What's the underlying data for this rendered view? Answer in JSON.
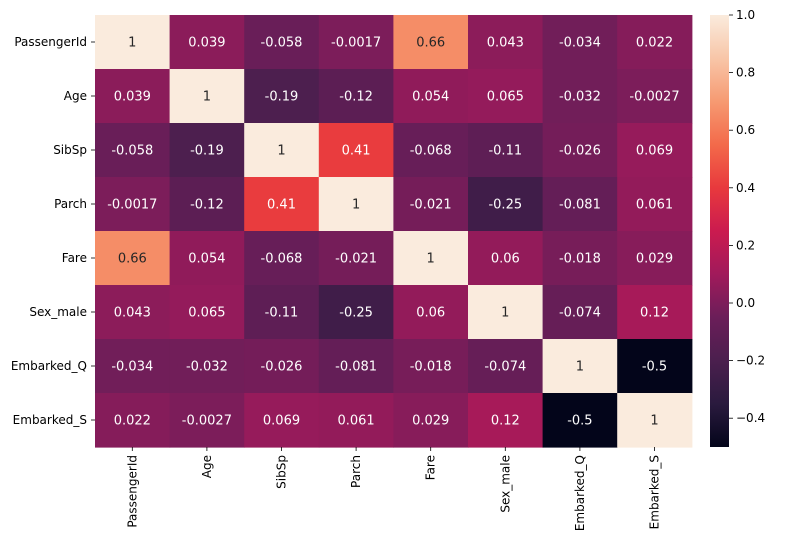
{
  "chart_data": {
    "type": "heatmap",
    "title": "",
    "xlabel": "",
    "ylabel": "",
    "labels": [
      "PassengerId",
      "Age",
      "SibSp",
      "Parch",
      "Fare",
      "Sex_male",
      "Embarked_Q",
      "Embarked_S"
    ],
    "values": [
      [
        1,
        0.039,
        -0.058,
        -0.0017,
        0.66,
        0.043,
        -0.034,
        0.022
      ],
      [
        0.039,
        1,
        -0.19,
        -0.12,
        0.054,
        0.065,
        -0.032,
        -0.0027
      ],
      [
        -0.058,
        -0.19,
        1,
        0.41,
        -0.068,
        -0.11,
        -0.026,
        0.069
      ],
      [
        -0.0017,
        -0.12,
        0.41,
        1,
        -0.021,
        -0.25,
        -0.081,
        0.061
      ],
      [
        0.66,
        0.054,
        -0.068,
        -0.021,
        1,
        0.06,
        -0.018,
        0.029
      ],
      [
        0.043,
        0.065,
        -0.11,
        -0.25,
        0.06,
        1,
        -0.074,
        0.12
      ],
      [
        -0.034,
        -0.032,
        -0.026,
        -0.081,
        -0.018,
        -0.074,
        1,
        -0.5
      ],
      [
        0.022,
        -0.0027,
        0.069,
        0.061,
        0.029,
        0.12,
        -0.5,
        1
      ]
    ],
    "annotations": [
      [
        "1",
        "0.039",
        "-0.058",
        "-0.0017",
        "0.66",
        "0.043",
        "-0.034",
        "0.022"
      ],
      [
        "0.039",
        "1",
        "-0.19",
        "-0.12",
        "0.054",
        "0.065",
        "-0.032",
        "-0.0027"
      ],
      [
        "-0.058",
        "-0.19",
        "1",
        "0.41",
        "-0.068",
        "-0.11",
        "-0.026",
        "0.069"
      ],
      [
        "-0.0017",
        "-0.12",
        "0.41",
        "1",
        "-0.021",
        "-0.25",
        "-0.081",
        "0.061"
      ],
      [
        "0.66",
        "0.054",
        "-0.068",
        "-0.021",
        "1",
        "0.06",
        "-0.018",
        "0.029"
      ],
      [
        "0.043",
        "0.065",
        "-0.11",
        "-0.25",
        "0.06",
        "1",
        "-0.074",
        "0.12"
      ],
      [
        "-0.034",
        "-0.032",
        "-0.026",
        "-0.081",
        "-0.018",
        "-0.074",
        "1",
        "-0.5"
      ],
      [
        "0.022",
        "-0.0027",
        "0.069",
        "0.061",
        "0.029",
        "0.12",
        "-0.5",
        "1"
      ]
    ],
    "colormap": "rocket",
    "vmin": -0.5,
    "vmax": 1.0,
    "colorbar_ticks": [
      1.0,
      0.8,
      0.6,
      0.4,
      0.2,
      0.0,
      -0.2,
      -0.4
    ],
    "colorbar_tick_labels": [
      "1.0",
      "0.8",
      "0.6",
      "0.4",
      "0.2",
      "0.0",
      "−0.2",
      "−0.4"
    ]
  }
}
